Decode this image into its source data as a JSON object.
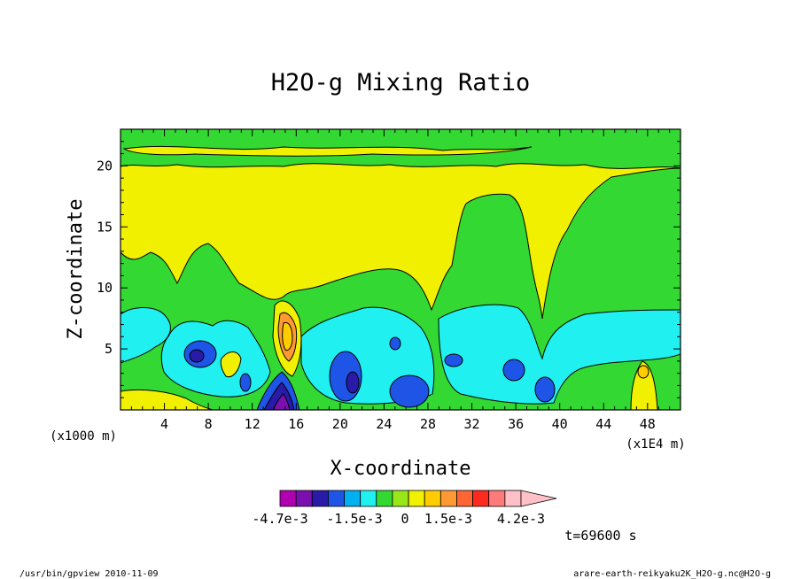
{
  "chart_data": {
    "type": "heatmap",
    "title": "H2O-g Mixing Ratio",
    "xlabel": "X-coordinate",
    "ylabel": "Z-coordinate",
    "x_scale_note": "(x1E4 m)",
    "y_scale_note": "(x1000 m)",
    "x_ticks": [
      4,
      8,
      12,
      16,
      20,
      24,
      28,
      32,
      36,
      40,
      44,
      48
    ],
    "y_ticks": [
      5,
      10,
      15,
      20
    ],
    "xlim": [
      0,
      51
    ],
    "ylim": [
      0,
      23
    ],
    "colorbar": {
      "colors": [
        "#b000b0",
        "#7a10b0",
        "#2a1aa8",
        "#1f55e6",
        "#00b0f0",
        "#20f0f0",
        "#33d833",
        "#99e619",
        "#f0f000",
        "#ffcc00",
        "#ff9933",
        "#ff6633",
        "#ff2a1f",
        "#ff7a7a",
        "#ffc0c8"
      ],
      "labels": [
        "-4.7e-3",
        "-1.5e-3",
        "0",
        "1.5e-3",
        "4.2e-3"
      ]
    },
    "grid": false
  },
  "time_label": "t=69600 s",
  "footer": {
    "left": "/usr/bin/gpview  2010-11-09",
    "right": "arare-earth-reikyaku2K_H2O-g.nc@H2O-g"
  }
}
